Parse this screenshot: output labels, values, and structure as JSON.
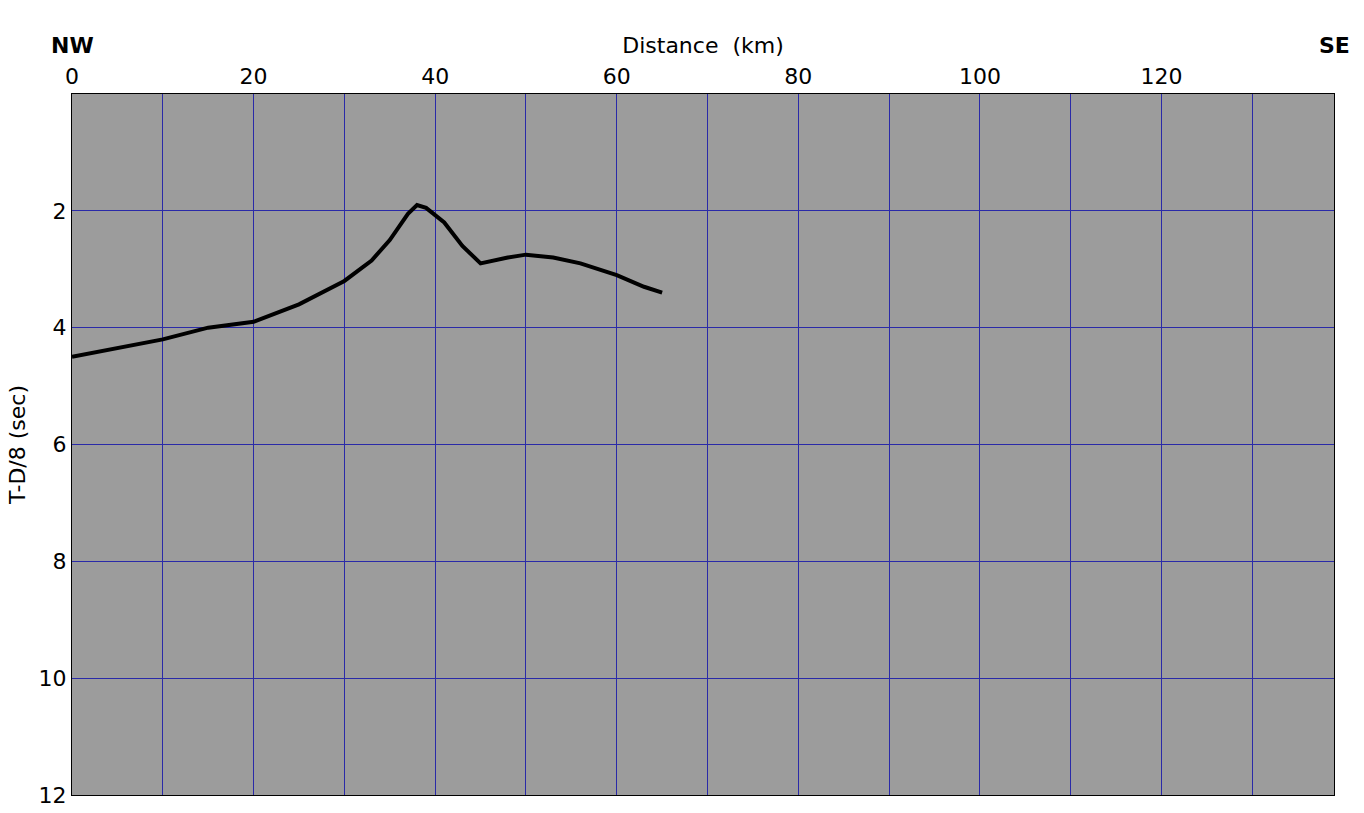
{
  "chart_data": {
    "type": "line",
    "x_label": "Distance  (km)",
    "y_label": "T-D/8 (sec)",
    "annotations": [
      {
        "text": "NW",
        "x": 0
      },
      {
        "text": "SE",
        "x": 139
      }
    ],
    "x": [
      0,
      5,
      10,
      15,
      20,
      25,
      30,
      33,
      35,
      37,
      38,
      39,
      41,
      43,
      45,
      48,
      50,
      53,
      56,
      60,
      63,
      65
    ],
    "series": [
      {
        "color": "#000000",
        "values": [
          4.5,
          4.35,
          4.2,
          4.0,
          3.9,
          3.6,
          3.2,
          2.85,
          2.5,
          2.05,
          1.9,
          1.95,
          2.2,
          2.6,
          2.9,
          2.8,
          2.75,
          2.8,
          2.9,
          3.1,
          3.3,
          3.4
        ]
      }
    ],
    "xlim": [
      0,
      139
    ],
    "ylim": [
      12,
      0
    ],
    "xticks": [
      0,
      20,
      40,
      60,
      80,
      100,
      120
    ],
    "yticks": [
      2,
      4,
      6,
      8,
      10,
      12
    ],
    "grid": true
  }
}
